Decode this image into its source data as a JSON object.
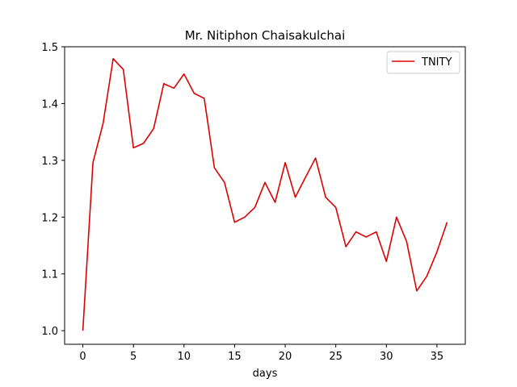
{
  "chart_data": {
    "type": "line",
    "title": "Mr. Nitiphon Chaisakulchai",
    "xlabel": "days",
    "ylabel": "",
    "xlim": [
      -1.8,
      37.8
    ],
    "ylim": [
      0.9761,
      1.5
    ],
    "xticks": [
      0,
      5,
      10,
      15,
      20,
      25,
      30,
      35
    ],
    "yticks": [
      1.0,
      1.1,
      1.2,
      1.3,
      1.4,
      1.5
    ],
    "ytick_labels": [
      "1.0",
      "1.1",
      "1.2",
      "1.3",
      "1.4",
      "1.5"
    ],
    "grid": false,
    "legend": {
      "placement": "top-right",
      "entries": [
        "TNITY"
      ]
    },
    "series": [
      {
        "name": "TNITY",
        "color": "#dd0000",
        "x": [
          0,
          1,
          2,
          3,
          4,
          5,
          6,
          7,
          8,
          9,
          10,
          11,
          12,
          13,
          14,
          15,
          16,
          17,
          18,
          19,
          20,
          21,
          22,
          23,
          24,
          25,
          26,
          27,
          28,
          29,
          30,
          31,
          32,
          33,
          34,
          35,
          36
        ],
        "y": [
          1.0,
          1.296,
          1.365,
          1.479,
          1.46,
          1.322,
          1.33,
          1.356,
          1.435,
          1.427,
          1.452,
          1.418,
          1.409,
          1.287,
          1.261,
          1.191,
          1.2,
          1.217,
          1.261,
          1.226,
          1.296,
          1.235,
          1.27,
          1.304,
          1.235,
          1.217,
          1.148,
          1.174,
          1.165,
          1.174,
          1.122,
          1.2,
          1.157,
          1.07,
          1.096,
          1.139,
          1.191
        ]
      }
    ]
  }
}
